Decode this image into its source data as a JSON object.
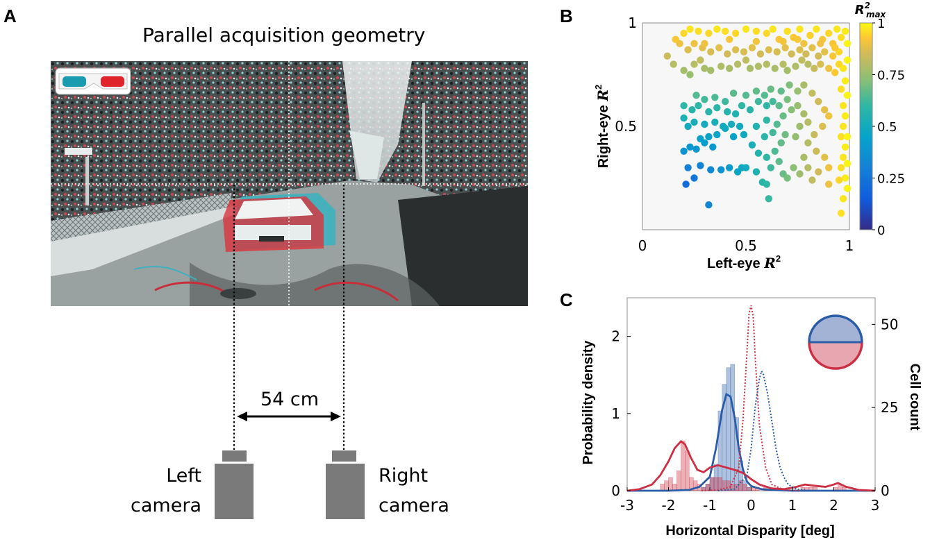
{
  "panel_labels": {
    "a": "A",
    "b": "B",
    "c": "C"
  },
  "panel_a": {
    "title": "Parallel acquisition geometry",
    "baseline": "54 cm",
    "left_camera": [
      "Left",
      "camera"
    ],
    "right_camera": [
      "Right",
      "camera"
    ],
    "glasses_icon": "anaglyph-glasses-icon",
    "colors": {
      "cyan": "#1a9bb0",
      "red": "#e0242b",
      "camera": "#7a7a7a"
    }
  },
  "chart_data": [
    {
      "type": "scatter",
      "panel": "B",
      "xlabel": "Left-eye R²",
      "ylabel": "Right-eye R²",
      "colorbar_label": "R²max",
      "xlim": [
        0,
        1
      ],
      "ylim": [
        0,
        1
      ],
      "xticks": [
        "0",
        "0.5",
        "1"
      ],
      "yticks": [
        "0.5",
        "1"
      ],
      "colorbar_ticks": [
        "0",
        "0.25",
        "0.5",
        "0.75",
        "1"
      ],
      "colormap": "parula",
      "points": [
        [
          0.32,
          0.12
        ],
        [
          0.22,
          0.3
        ],
        [
          0.25,
          0.25
        ],
        [
          0.21,
          0.22
        ],
        [
          0.28,
          0.31
        ],
        [
          0.33,
          0.29
        ],
        [
          0.38,
          0.29
        ],
        [
          0.42,
          0.3
        ],
        [
          0.46,
          0.28
        ],
        [
          0.48,
          0.3
        ],
        [
          0.5,
          0.3
        ],
        [
          0.55,
          0.28
        ],
        [
          0.58,
          0.23
        ],
        [
          0.6,
          0.22
        ],
        [
          0.61,
          0.15
        ],
        [
          0.62,
          0.3
        ],
        [
          0.66,
          0.33
        ],
        [
          0.68,
          0.27
        ],
        [
          0.7,
          0.25
        ],
        [
          0.73,
          0.3
        ],
        [
          0.2,
          0.38
        ],
        [
          0.23,
          0.4
        ],
        [
          0.26,
          0.39
        ],
        [
          0.3,
          0.42
        ],
        [
          0.34,
          0.4
        ],
        [
          0.28,
          0.44
        ],
        [
          0.32,
          0.45
        ],
        [
          0.36,
          0.46
        ],
        [
          0.4,
          0.49
        ],
        [
          0.44,
          0.45
        ],
        [
          0.22,
          0.5
        ],
        [
          0.25,
          0.52
        ],
        [
          0.3,
          0.51
        ],
        [
          0.35,
          0.52
        ],
        [
          0.39,
          0.5
        ],
        [
          0.43,
          0.51
        ],
        [
          0.47,
          0.5
        ],
        [
          0.49,
          0.46
        ],
        [
          0.53,
          0.41
        ],
        [
          0.56,
          0.37
        ],
        [
          0.6,
          0.35
        ],
        [
          0.64,
          0.38
        ],
        [
          0.67,
          0.42
        ],
        [
          0.69,
          0.46
        ],
        [
          0.63,
          0.47
        ],
        [
          0.59,
          0.45
        ],
        [
          0.55,
          0.5
        ],
        [
          0.6,
          0.53
        ],
        [
          0.65,
          0.51
        ],
        [
          0.68,
          0.55
        ],
        [
          0.2,
          0.54
        ],
        [
          0.24,
          0.58
        ],
        [
          0.27,
          0.6
        ],
        [
          0.32,
          0.57
        ],
        [
          0.36,
          0.59
        ],
        [
          0.41,
          0.57
        ],
        [
          0.45,
          0.56
        ],
        [
          0.48,
          0.6
        ],
        [
          0.52,
          0.58
        ],
        [
          0.56,
          0.62
        ],
        [
          0.6,
          0.6
        ],
        [
          0.63,
          0.62
        ],
        [
          0.66,
          0.6
        ],
        [
          0.7,
          0.63
        ],
        [
          0.72,
          0.58
        ],
        [
          0.75,
          0.6
        ],
        [
          0.78,
          0.56
        ],
        [
          0.8,
          0.52
        ],
        [
          0.76,
          0.5
        ],
        [
          0.74,
          0.45
        ],
        [
          0.2,
          0.6
        ],
        [
          0.26,
          0.65
        ],
        [
          0.3,
          0.63
        ],
        [
          0.35,
          0.64
        ],
        [
          0.4,
          0.62
        ],
        [
          0.44,
          0.66
        ],
        [
          0.5,
          0.65
        ],
        [
          0.55,
          0.67
        ],
        [
          0.59,
          0.65
        ],
        [
          0.62,
          0.68
        ],
        [
          0.67,
          0.67
        ],
        [
          0.71,
          0.7
        ],
        [
          0.75,
          0.67
        ],
        [
          0.78,
          0.7
        ],
        [
          0.82,
          0.66
        ],
        [
          0.85,
          0.62
        ],
        [
          0.88,
          0.58
        ],
        [
          0.9,
          0.55
        ],
        [
          0.87,
          0.5
        ],
        [
          0.83,
          0.46
        ],
        [
          0.8,
          0.42
        ],
        [
          0.84,
          0.38
        ],
        [
          0.88,
          0.35
        ],
        [
          0.9,
          0.3
        ],
        [
          0.85,
          0.28
        ],
        [
          0.8,
          0.3
        ],
        [
          0.78,
          0.35
        ],
        [
          0.76,
          0.27
        ],
        [
          0.82,
          0.24
        ],
        [
          0.9,
          0.22
        ],
        [
          0.12,
          0.84
        ],
        [
          0.15,
          0.8
        ],
        [
          0.2,
          0.77
        ],
        [
          0.23,
          0.75
        ],
        [
          0.25,
          0.8
        ],
        [
          0.28,
          0.82
        ],
        [
          0.3,
          0.78
        ],
        [
          0.33,
          0.77
        ],
        [
          0.38,
          0.79
        ],
        [
          0.42,
          0.78
        ],
        [
          0.46,
          0.8
        ],
        [
          0.5,
          0.82
        ],
        [
          0.52,
          0.78
        ],
        [
          0.56,
          0.79
        ],
        [
          0.6,
          0.8
        ],
        [
          0.64,
          0.78
        ],
        [
          0.68,
          0.8
        ],
        [
          0.7,
          0.77
        ],
        [
          0.74,
          0.79
        ],
        [
          0.77,
          0.82
        ],
        [
          0.8,
          0.8
        ],
        [
          0.83,
          0.78
        ],
        [
          0.86,
          0.8
        ],
        [
          0.9,
          0.78
        ],
        [
          0.93,
          0.76
        ],
        [
          0.95,
          0.8
        ],
        [
          0.97,
          0.78
        ],
        [
          0.98,
          0.72
        ],
        [
          0.96,
          0.68
        ],
        [
          0.97,
          0.6
        ],
        [
          0.98,
          0.55
        ],
        [
          0.97,
          0.5
        ],
        [
          0.96,
          0.45
        ],
        [
          0.98,
          0.4
        ],
        [
          0.97,
          0.35
        ],
        [
          0.96,
          0.3
        ],
        [
          0.98,
          0.25
        ],
        [
          0.95,
          0.24
        ],
        [
          0.97,
          0.15
        ],
        [
          0.96,
          0.08
        ],
        [
          0.2,
          0.95
        ],
        [
          0.23,
          0.97
        ],
        [
          0.27,
          0.96
        ],
        [
          0.32,
          0.95
        ],
        [
          0.36,
          0.97
        ],
        [
          0.4,
          0.96
        ],
        [
          0.45,
          0.95
        ],
        [
          0.5,
          0.97
        ],
        [
          0.55,
          0.96
        ],
        [
          0.6,
          0.95
        ],
        [
          0.63,
          0.97
        ],
        [
          0.66,
          0.92
        ],
        [
          0.7,
          0.96
        ],
        [
          0.73,
          0.93
        ],
        [
          0.76,
          0.97
        ],
        [
          0.78,
          0.9
        ],
        [
          0.81,
          0.94
        ],
        [
          0.84,
          0.97
        ],
        [
          0.87,
          0.92
        ],
        [
          0.9,
          0.95
        ],
        [
          0.92,
          0.9
        ],
        [
          0.94,
          0.97
        ],
        [
          0.96,
          0.93
        ],
        [
          0.98,
          0.96
        ],
        [
          0.99,
          0.9
        ],
        [
          0.95,
          0.86
        ],
        [
          0.92,
          0.84
        ],
        [
          0.88,
          0.86
        ],
        [
          0.85,
          0.84
        ],
        [
          0.82,
          0.88
        ],
        [
          0.79,
          0.85
        ],
        [
          0.76,
          0.87
        ],
        [
          0.72,
          0.85
        ],
        [
          0.69,
          0.88
        ],
        [
          0.65,
          0.86
        ],
        [
          0.61,
          0.87
        ],
        [
          0.57,
          0.85
        ],
        [
          0.53,
          0.88
        ],
        [
          0.49,
          0.86
        ],
        [
          0.45,
          0.87
        ],
        [
          0.41,
          0.85
        ],
        [
          0.37,
          0.88
        ],
        [
          0.33,
          0.86
        ],
        [
          0.29,
          0.88
        ],
        [
          0.25,
          0.9
        ],
        [
          0.22,
          0.87
        ],
        [
          0.18,
          0.9
        ],
        [
          0.16,
          0.92
        ],
        [
          0.3,
          0.9
        ],
        [
          0.42,
          0.92
        ],
        [
          0.55,
          0.91
        ],
        [
          0.68,
          0.91
        ],
        [
          0.75,
          0.92
        ],
        [
          0.86,
          0.9
        ],
        [
          0.93,
          0.88
        ],
        [
          0.99,
          0.82
        ],
        [
          0.99,
          0.65
        ],
        [
          0.99,
          0.45
        ],
        [
          0.99,
          0.32
        ],
        [
          0.99,
          0.2
        ]
      ]
    },
    {
      "type": "bar+line",
      "panel": "C",
      "xlabel": "Horizontal Disparity [deg]",
      "ylabel_left": "Probability density",
      "ylabel_right": "Cell count",
      "xlim": [
        -3,
        3
      ],
      "ylim_left": [
        0,
        2.5
      ],
      "ylim_right": [
        0,
        58
      ],
      "xticks": [
        "-3",
        "-2",
        "-1",
        "0",
        "1",
        "2",
        "3"
      ],
      "yticks_left": [
        "0",
        "1",
        "2"
      ],
      "yticks_right": [
        "0",
        "25",
        "50"
      ],
      "bin_edges": [
        -3.0,
        -2.9,
        -2.8,
        -2.7,
        -2.6,
        -2.5,
        -2.4,
        -2.3,
        -2.2,
        -2.1,
        -2.0,
        -1.9,
        -1.8,
        -1.7,
        -1.6,
        -1.5,
        -1.4,
        -1.3,
        -1.2,
        -1.1,
        -1.0,
        -0.9,
        -0.8,
        -0.7,
        -0.6,
        -0.5,
        -0.4,
        -0.3,
        -0.2,
        -0.1,
        0.0,
        0.1,
        0.2,
        0.3,
        0.4,
        0.5,
        0.6,
        0.7,
        0.8,
        0.9,
        1.0,
        1.1,
        1.2,
        1.3,
        1.4,
        1.5,
        1.6,
        1.7,
        1.8,
        1.9,
        2.0,
        2.1,
        2.2,
        2.3,
        2.4,
        2.5,
        2.6,
        2.7,
        2.8,
        2.9,
        3.0
      ],
      "series": [
        {
          "name": "Blue cells",
          "color": "#2b5ca8",
          "kind": "histogram",
          "counts": [
            0,
            0,
            0,
            0,
            0,
            0,
            0,
            0,
            0,
            0,
            0,
            0,
            0,
            0,
            0,
            0,
            0,
            0,
            1,
            2,
            4,
            8,
            24,
            32,
            37,
            38,
            22,
            9,
            3,
            1,
            0,
            0,
            0,
            0,
            0,
            0,
            0,
            0,
            0,
            0,
            0,
            0,
            0,
            0,
            0,
            0,
            0,
            0,
            0,
            0,
            0,
            0,
            0,
            0,
            0,
            0,
            0,
            0,
            0,
            0
          ]
        },
        {
          "name": "Red cells",
          "color": "#cc2f43",
          "kind": "histogram",
          "counts": [
            0,
            0,
            0,
            0,
            0,
            0,
            0,
            0,
            2,
            3,
            4,
            2,
            6,
            15,
            12,
            4,
            3,
            2,
            1,
            2,
            4,
            4,
            4,
            3,
            3,
            2,
            2,
            3,
            2,
            1,
            1,
            1,
            0,
            1,
            0,
            0,
            0,
            0,
            0,
            0,
            0,
            0,
            1,
            1,
            1,
            1,
            0,
            0,
            0,
            0,
            1,
            2,
            1,
            0,
            0,
            0,
            0,
            0,
            0,
            0
          ]
        },
        {
          "name": "Blue KDE",
          "color": "#2b5ca8",
          "kind": "line",
          "x": [
            -3.0,
            -2.5,
            -2.0,
            -1.5,
            -1.25,
            -1.0,
            -0.85,
            -0.7,
            -0.6,
            -0.5,
            -0.4,
            -0.3,
            -0.2,
            -0.1,
            0.0,
            0.25,
            0.5,
            1.0,
            1.5,
            2.0,
            2.5,
            3.0
          ],
          "y": [
            0,
            0,
            0,
            0.01,
            0.05,
            0.18,
            0.55,
            1.05,
            1.25,
            1.22,
            0.95,
            0.55,
            0.28,
            0.12,
            0.06,
            0.02,
            0.01,
            0,
            0,
            0,
            0,
            0
          ]
        },
        {
          "name": "Red KDE",
          "color": "#cc2f43",
          "kind": "line",
          "x": [
            -3.0,
            -2.7,
            -2.4,
            -2.2,
            -2.0,
            -1.85,
            -1.7,
            -1.6,
            -1.45,
            -1.3,
            -1.15,
            -1.0,
            -0.8,
            -0.6,
            -0.4,
            -0.2,
            0.0,
            0.2,
            0.5,
            0.8,
            1.1,
            1.3,
            1.6,
            1.8,
            2.0,
            2.1,
            2.3,
            2.6,
            3.0
          ],
          "y": [
            0,
            0.02,
            0.08,
            0.2,
            0.38,
            0.55,
            0.64,
            0.6,
            0.42,
            0.27,
            0.24,
            0.3,
            0.33,
            0.3,
            0.27,
            0.23,
            0.15,
            0.08,
            0.03,
            0.02,
            0.05,
            0.08,
            0.06,
            0.05,
            0.08,
            0.1,
            0.05,
            0.01,
            0
          ]
        },
        {
          "name": "Red population",
          "color": "#cc2f43",
          "kind": "dotted",
          "x": [
            -1.2,
            -0.8,
            -0.5,
            -0.3,
            -0.2,
            -0.1,
            -0.05,
            0.0,
            0.05,
            0.1,
            0.2,
            0.35,
            0.5,
            0.8,
            1.2
          ],
          "y": [
            0,
            0.01,
            0.05,
            0.3,
            0.9,
            1.8,
            2.3,
            2.4,
            2.25,
            1.7,
            0.85,
            0.3,
            0.08,
            0.01,
            0
          ]
        },
        {
          "name": "Blue population",
          "color": "#2b5ca8",
          "kind": "dotted",
          "x": [
            -0.8,
            -0.4,
            -0.1,
            0.0,
            0.1,
            0.2,
            0.25,
            0.3,
            0.4,
            0.5,
            0.6,
            0.7,
            0.8,
            0.9,
            1.1,
            1.4
          ],
          "y": [
            0,
            0.02,
            0.2,
            0.55,
            1.1,
            1.45,
            1.55,
            1.5,
            1.25,
            0.9,
            0.55,
            0.3,
            0.17,
            0.08,
            0.02,
            0
          ]
        }
      ]
    }
  ]
}
